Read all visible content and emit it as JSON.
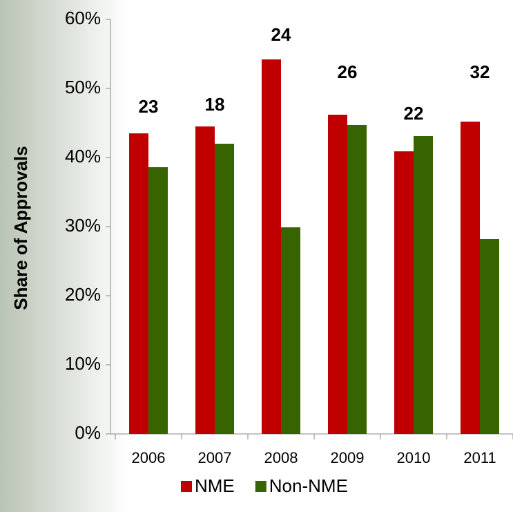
{
  "chart_data": {
    "type": "bar",
    "y_label": "Share of Approvals",
    "categories": [
      "2006",
      "2007",
      "2008",
      "2009",
      "2010",
      "2011"
    ],
    "series": [
      {
        "name": "NME",
        "color": "#c00000",
        "values": [
          43.5,
          44.5,
          54.2,
          46.2,
          40.9,
          45.2
        ]
      },
      {
        "name": "Non-NME",
        "color": "#376400",
        "values": [
          38.6,
          42.0,
          29.9,
          44.7,
          43.1,
          28.2
        ]
      }
    ],
    "annotations": [
      "23",
      "18",
      "24",
      "26",
      "22",
      "32"
    ],
    "ylim": [
      0,
      60
    ],
    "yticks": [
      {
        "value": 0,
        "label": "0%"
      },
      {
        "value": 10,
        "label": "10%"
      },
      {
        "value": 20,
        "label": "20%"
      },
      {
        "value": 30,
        "label": "30%"
      },
      {
        "value": 40,
        "label": "40%"
      },
      {
        "value": 50,
        "label": "50%"
      },
      {
        "value": 60,
        "label": "60%"
      }
    ],
    "grid": false,
    "legend": "bottom"
  }
}
